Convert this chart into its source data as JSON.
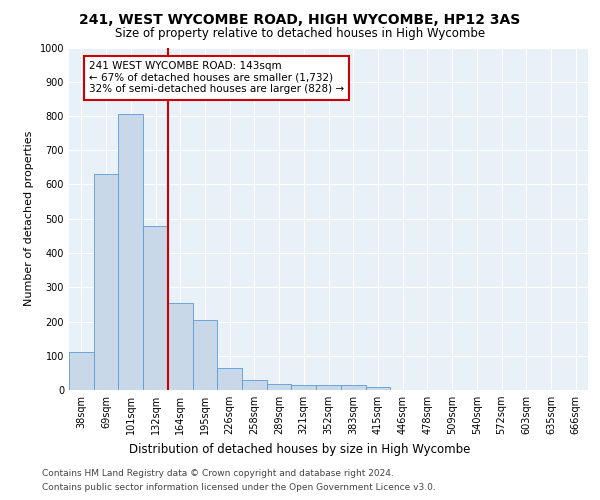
{
  "title1": "241, WEST WYCOMBE ROAD, HIGH WYCOMBE, HP12 3AS",
  "title2": "Size of property relative to detached houses in High Wycombe",
  "xlabel": "Distribution of detached houses by size in High Wycombe",
  "ylabel": "Number of detached properties",
  "categories": [
    "38sqm",
    "69sqm",
    "101sqm",
    "132sqm",
    "164sqm",
    "195sqm",
    "226sqm",
    "258sqm",
    "289sqm",
    "321sqm",
    "352sqm",
    "383sqm",
    "415sqm",
    "446sqm",
    "478sqm",
    "509sqm",
    "540sqm",
    "572sqm",
    "603sqm",
    "635sqm",
    "666sqm"
  ],
  "values": [
    110,
    630,
    805,
    480,
    255,
    205,
    63,
    28,
    17,
    15,
    15,
    15,
    10,
    0,
    0,
    0,
    0,
    0,
    0,
    0,
    0
  ],
  "bar_color": "#c8d8e8",
  "bar_edge_color": "#5b9bd5",
  "vline_color": "#cc0000",
  "annotation_text": "241 WEST WYCOMBE ROAD: 143sqm\n← 67% of detached houses are smaller (1,732)\n32% of semi-detached houses are larger (828) →",
  "annotation_box_color": "#ffffff",
  "annotation_box_edge": "#cc0000",
  "ylim": [
    0,
    1000
  ],
  "yticks": [
    0,
    100,
    200,
    300,
    400,
    500,
    600,
    700,
    800,
    900,
    1000
  ],
  "background_color": "#e8f0f8",
  "footer1": "Contains HM Land Registry data © Crown copyright and database right 2024.",
  "footer2": "Contains public sector information licensed under the Open Government Licence v3.0.",
  "title1_fontsize": 10,
  "title2_fontsize": 8.5,
  "xlabel_fontsize": 8.5,
  "ylabel_fontsize": 8,
  "tick_fontsize": 7,
  "footer_fontsize": 6.5,
  "annot_fontsize": 7.5
}
